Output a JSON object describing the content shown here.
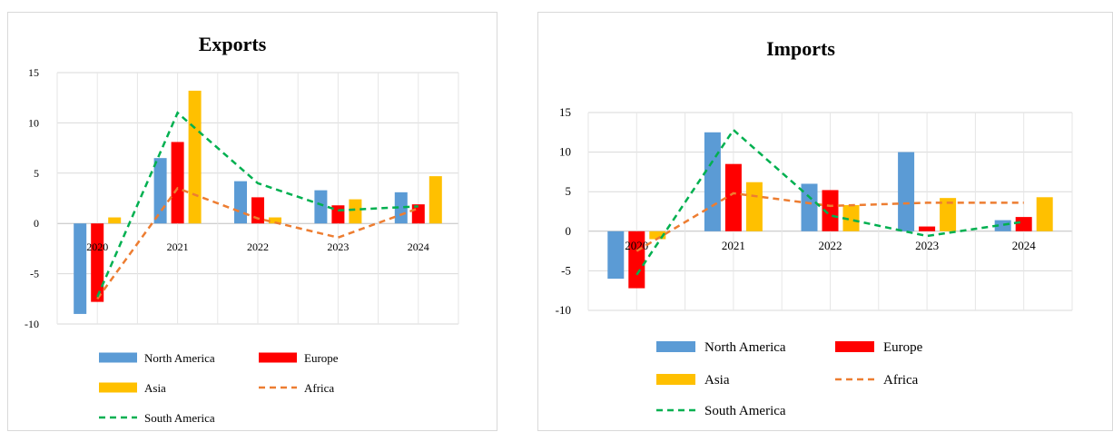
{
  "chart_data": [
    {
      "type": "bar",
      "title": "Exports",
      "categories": [
        "2020",
        "2021",
        "2022",
        "2023",
        "2024"
      ],
      "ylim": [
        -10,
        15
      ],
      "yticks": [
        15,
        10,
        5,
        0,
        -5,
        -10
      ],
      "grid": true,
      "legend_position": "bottom",
      "series": [
        {
          "name": "North America",
          "kind": "bar",
          "color": "#5b9bd5",
          "values": [
            -9,
            6.5,
            4.2,
            3.3,
            3.1
          ]
        },
        {
          "name": "Europe",
          "kind": "bar",
          "color": "#ff0000",
          "values": [
            -7.8,
            8.1,
            2.6,
            1.8,
            1.9
          ]
        },
        {
          "name": "Asia",
          "kind": "bar",
          "color": "#ffc000",
          "values": [
            0.6,
            13.2,
            0.6,
            2.4,
            4.7
          ]
        },
        {
          "name": "Africa",
          "kind": "line",
          "color": "#ed7d31",
          "values": [
            -7.5,
            3.5,
            0.5,
            -1.4,
            1.5
          ]
        },
        {
          "name": "South America",
          "kind": "line",
          "color": "#00b050",
          "values": [
            -7.3,
            11,
            4,
            1.3,
            1.7
          ]
        }
      ]
    },
    {
      "type": "bar",
      "title": "Imports",
      "categories": [
        "2020",
        "2021",
        "2022",
        "2023",
        "2024"
      ],
      "ylim": [
        -10,
        15
      ],
      "yticks": [
        15,
        10,
        5,
        0,
        -5,
        -10
      ],
      "grid": true,
      "legend_position": "bottom",
      "series": [
        {
          "name": "North America",
          "kind": "bar",
          "color": "#5b9bd5",
          "values": [
            -6,
            12.5,
            6,
            10,
            1.4
          ]
        },
        {
          "name": "Europe",
          "kind": "bar",
          "color": "#ff0000",
          "values": [
            -7.2,
            8.5,
            5.2,
            0.6,
            1.8
          ]
        },
        {
          "name": "Asia",
          "kind": "bar",
          "color": "#ffc000",
          "values": [
            -1,
            6.2,
            3.3,
            4.2,
            4.3
          ]
        },
        {
          "name": "Africa",
          "kind": "line",
          "color": "#ed7d31",
          "values": [
            -2.5,
            4.8,
            3.2,
            3.6,
            3.6
          ]
        },
        {
          "name": "South America",
          "kind": "line",
          "color": "#00b050",
          "values": [
            -5.5,
            12.8,
            2,
            -0.6,
            1.2
          ]
        }
      ]
    }
  ]
}
